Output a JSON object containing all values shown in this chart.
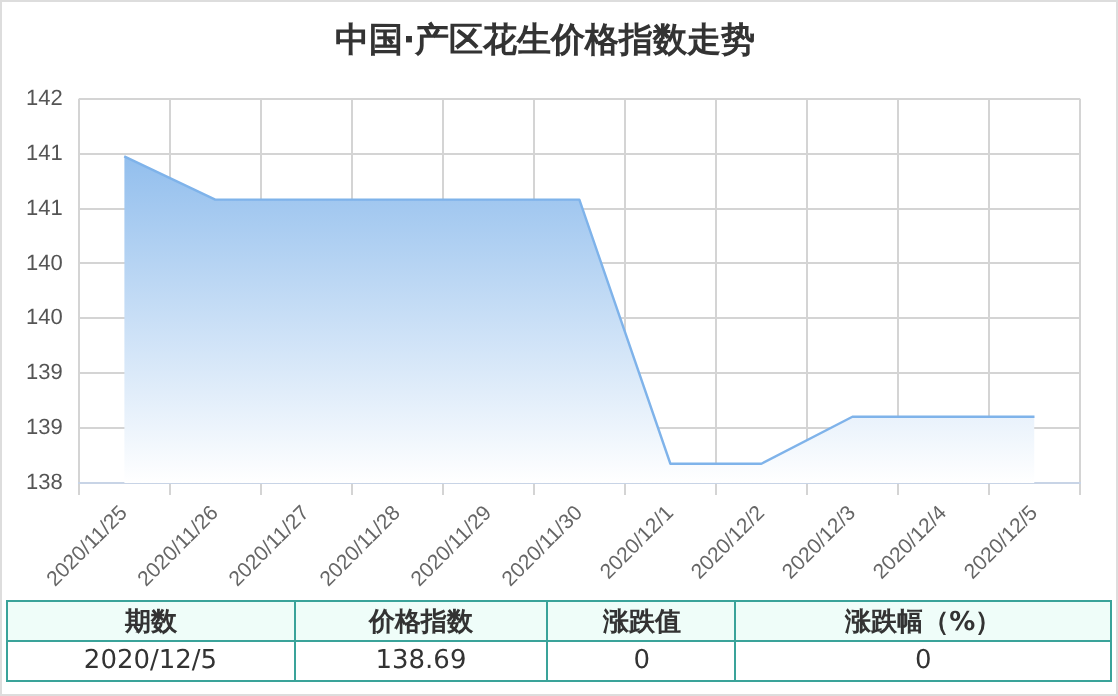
{
  "chart_data": {
    "type": "area",
    "title": "中国·产区花生价格指数走势",
    "categories": [
      "2020/11/25",
      "2020/11/26",
      "2020/11/27",
      "2020/11/28",
      "2020/11/29",
      "2020/11/30",
      "2020/12/1",
      "2020/12/2",
      "2020/12/3",
      "2020/12/4",
      "2020/12/5"
    ],
    "series": [
      {
        "color": "#7fb3ea",
        "values": [
          141.4,
          140.95,
          140.95,
          140.95,
          140.95,
          140.95,
          138.2,
          138.2,
          138.69,
          138.69,
          138.69
        ]
      }
    ],
    "ylim": [
      138,
      142
    ],
    "yticks": [
      138,
      {
        "value": 138.5714,
        "label": "139"
      },
      {
        "value": 139.1429,
        "label": "139"
      },
      {
        "value": 139.7143,
        "label": "140"
      },
      {
        "value": 140.2857,
        "label": "140"
      },
      {
        "value": 140.8571,
        "label": "141"
      },
      {
        "value": 141.4286,
        "label": "141"
      },
      142
    ],
    "grid": true,
    "legend": false,
    "marker": "none",
    "annotations": [
      "期数",
      "价格指数",
      "涨跌值",
      "涨跌幅（%）",
      "2020/12/5",
      "138.69",
      "0",
      "0"
    ]
  }
}
